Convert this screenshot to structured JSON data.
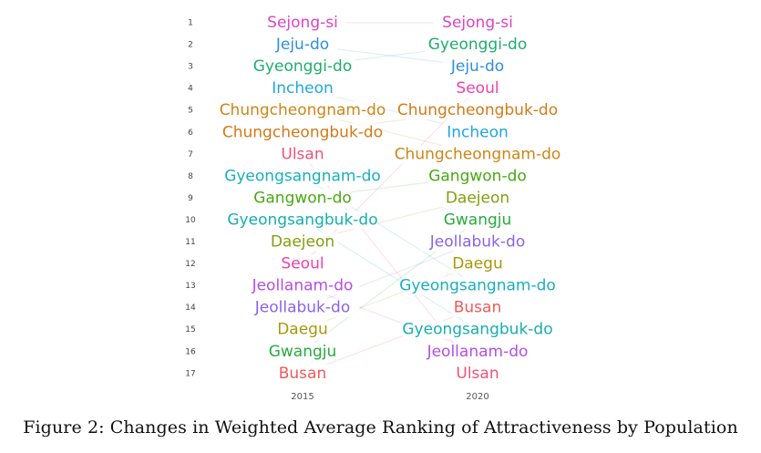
{
  "chart_data": {
    "type": "bump",
    "ranks": [
      1,
      2,
      3,
      4,
      5,
      6,
      7,
      8,
      9,
      10,
      11,
      12,
      13,
      14,
      15,
      16,
      17
    ],
    "years": [
      "2015",
      "2020"
    ],
    "ranking_2015": [
      "Sejong-si",
      "Jeju-do",
      "Gyeonggi-do",
      "Incheon",
      "Chungcheongnam-do",
      "Chungcheongbuk-do",
      "Ulsan",
      "Gyeongsangnam-do",
      "Gangwon-do",
      "Gyeongsangbuk-do",
      "Daejeon",
      "Seoul",
      "Jeollanam-do",
      "Jeollabuk-do",
      "Daegu",
      "Gwangju",
      "Busan"
    ],
    "ranking_2020": [
      "Sejong-si",
      "Gyeonggi-do",
      "Jeju-do",
      "Seoul",
      "Chungcheongbuk-do",
      "Incheon",
      "Chungcheongnam-do",
      "Gangwon-do",
      "Daejeon",
      "Gwangju",
      "Jeollabuk-do",
      "Daegu",
      "Gyeongsangnam-do",
      "Busan",
      "Gyeongsangbuk-do",
      "Jeollanam-do",
      "Ulsan"
    ],
    "region_colors": {
      "Sejong-si": "#dd44c4",
      "Jeju-do": "#2f8fe0",
      "Gyeonggi-do": "#1fae6d",
      "Incheon": "#22a6dc",
      "Chungcheongnam-do": "#cf8516",
      "Chungcheongbuk-do": "#d27a18",
      "Ulsan": "#f0527a",
      "Gyeongsangnam-do": "#1aaec0",
      "Gangwon-do": "#4aa814",
      "Gyeongsangbuk-do": "#17aeb0",
      "Daejeon": "#83a00e",
      "Seoul": "#ef3fae",
      "Jeollanam-do": "#b54fe2",
      "Jeollabuk-do": "#8a63ec",
      "Daegu": "#a89808",
      "Gwangju": "#26ab3e",
      "Busan": "#ef5a5a"
    }
  },
  "caption": "Figure 2: Changes in Weighted Average Ranking of Attractiveness by Population"
}
